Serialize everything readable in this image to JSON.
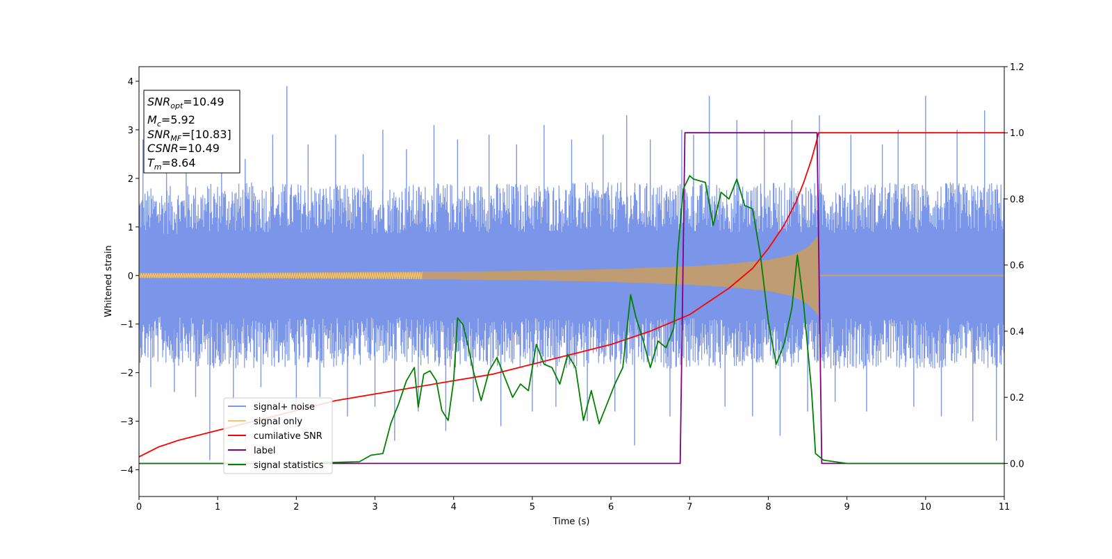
{
  "chart_data": {
    "type": "line",
    "title": "",
    "xlabel": "Time (s)",
    "ylabel": "Whitened strain",
    "xlim": [
      0,
      11
    ],
    "ylim": [
      -4.55,
      4.3
    ],
    "y2lim": [
      -0.1,
      1.2
    ],
    "x_ticks": [
      0,
      1,
      2,
      3,
      4,
      5,
      6,
      7,
      8,
      9,
      10,
      11
    ],
    "y_ticks": [
      -4,
      -3,
      -2,
      -1,
      0,
      1,
      2,
      3,
      4
    ],
    "y2_ticks": [
      0.0,
      0.2,
      0.4,
      0.6,
      0.8,
      1.0,
      1.2
    ],
    "grid": false,
    "legend_position": "bottom-left",
    "annotation": {
      "lines": [
        {
          "base": "SNR",
          "sub": "opt",
          "value": "=10.49"
        },
        {
          "base": "M",
          "sub": "c",
          "value": "=5.92"
        },
        {
          "base": "SNR",
          "sub": "MF",
          "value": "=[10.83]"
        },
        {
          "base": "CSNR",
          "sub": "",
          "value": "=10.49"
        },
        {
          "base": "T",
          "sub": "m",
          "value": "=8.64"
        }
      ]
    },
    "series": [
      {
        "name": "signal+ noise",
        "color": "#7b96e8",
        "axis": "left",
        "description_of_values": "whitened strain noise band",
        "x": [
          0,
          1,
          2,
          3,
          4,
          5,
          6,
          7,
          8,
          9,
          10,
          11
        ],
        "y_upper": [
          1.5,
          1.6,
          1.6,
          1.55,
          1.6,
          1.6,
          1.6,
          1.6,
          1.6,
          1.6,
          1.6,
          1.6
        ],
        "y_lower": [
          -1.5,
          -1.6,
          -1.6,
          -1.55,
          -1.6,
          -1.6,
          -1.6,
          -1.6,
          -1.6,
          -1.6,
          -1.6,
          -1.6
        ],
        "spikes": [
          [
            0.05,
            2.8
          ],
          [
            0.15,
            -2.3
          ],
          [
            0.35,
            2.6
          ],
          [
            0.45,
            -2.4
          ],
          [
            0.6,
            2.9
          ],
          [
            0.72,
            -2.5
          ],
          [
            0.9,
            -3.8
          ],
          [
            1.05,
            2.5
          ],
          [
            1.2,
            -2.6
          ],
          [
            1.35,
            2.4
          ],
          [
            1.55,
            -2.3
          ],
          [
            1.7,
            2.9
          ],
          [
            1.88,
            3.9
          ],
          [
            2.0,
            -2.7
          ],
          [
            2.15,
            2.7
          ],
          [
            2.3,
            -2.5
          ],
          [
            2.5,
            2.9
          ],
          [
            2.65,
            -2.9
          ],
          [
            2.85,
            2.5
          ],
          [
            3.0,
            -2.7
          ],
          [
            3.1,
            3.0
          ],
          [
            3.25,
            -3.4
          ],
          [
            3.4,
            2.6
          ],
          [
            3.55,
            -2.8
          ],
          [
            3.75,
            3.1
          ],
          [
            3.9,
            -3.2
          ],
          [
            4.05,
            2.8
          ],
          [
            4.25,
            -2.6
          ],
          [
            4.45,
            2.9
          ],
          [
            4.6,
            -3.1
          ],
          [
            4.8,
            2.7
          ],
          [
            5.0,
            -2.8
          ],
          [
            5.15,
            3.1
          ],
          [
            5.3,
            -2.7
          ],
          [
            5.5,
            2.8
          ],
          [
            5.7,
            -3.0
          ],
          [
            5.9,
            2.9
          ],
          [
            6.05,
            -2.8
          ],
          [
            6.2,
            3.3
          ],
          [
            6.3,
            -3.5
          ],
          [
            6.5,
            2.8
          ],
          [
            6.75,
            -2.9
          ],
          [
            6.9,
            3.0
          ],
          [
            7.05,
            2.9
          ],
          [
            7.25,
            3.7
          ],
          [
            7.45,
            -2.7
          ],
          [
            7.6,
            3.2
          ],
          [
            7.8,
            -2.9
          ],
          [
            7.95,
            3.0
          ],
          [
            8.15,
            -3.3
          ],
          [
            8.3,
            3.2
          ],
          [
            8.5,
            -2.8
          ],
          [
            8.65,
            3.3
          ],
          [
            8.85,
            -2.6
          ],
          [
            9.05,
            2.9
          ],
          [
            9.25,
            -2.8
          ],
          [
            9.45,
            2.7
          ],
          [
            9.65,
            3.0
          ],
          [
            9.85,
            -2.7
          ],
          [
            10.0,
            3.7
          ],
          [
            10.2,
            -2.9
          ],
          [
            10.4,
            3.0
          ],
          [
            10.6,
            -3.0
          ],
          [
            10.75,
            3.4
          ],
          [
            10.9,
            -3.4
          ]
        ]
      },
      {
        "name": "signal only",
        "color": "#f7c56a",
        "axis": "left",
        "description_of_values": "chirp amplitude envelope",
        "x": [
          0,
          1,
          2,
          3,
          4,
          5,
          6,
          7,
          7.5,
          8,
          8.3,
          8.5,
          8.6,
          8.64,
          11
        ],
        "y_envelope": [
          0.05,
          0.05,
          0.06,
          0.07,
          0.08,
          0.1,
          0.13,
          0.19,
          0.24,
          0.32,
          0.42,
          0.58,
          0.75,
          0.85,
          0.0
        ]
      },
      {
        "name": "cumilative SNR",
        "color": "#ff0000",
        "axis": "right",
        "x": [
          0,
          0.25,
          0.5,
          1,
          1.5,
          2,
          2.5,
          3,
          3.5,
          4,
          4.5,
          5,
          5.5,
          6,
          6.5,
          7,
          7.5,
          7.8,
          8.0,
          8.2,
          8.35,
          8.45,
          8.55,
          8.62,
          8.64,
          11
        ],
        "y": [
          0.02,
          0.05,
          0.07,
          0.1,
          0.13,
          0.16,
          0.19,
          0.21,
          0.23,
          0.25,
          0.27,
          0.3,
          0.33,
          0.36,
          0.4,
          0.45,
          0.53,
          0.59,
          0.65,
          0.72,
          0.79,
          0.85,
          0.92,
          0.98,
          1.0,
          1.0
        ]
      },
      {
        "name": "label",
        "color": "#800080",
        "axis": "right",
        "x": [
          0,
          6.88,
          6.94,
          8.62,
          8.68,
          11
        ],
        "y": [
          0,
          0,
          1,
          1,
          0,
          0
        ]
      },
      {
        "name": "signal statistics",
        "color": "#008000",
        "axis": "right",
        "x": [
          0,
          1,
          2,
          2.8,
          2.95,
          3.1,
          3.2,
          3.3,
          3.4,
          3.5,
          3.55,
          3.62,
          3.7,
          3.78,
          3.85,
          3.93,
          4.0,
          4.05,
          4.12,
          4.18,
          4.25,
          4.35,
          4.45,
          4.55,
          4.65,
          4.75,
          4.85,
          4.95,
          5.05,
          5.15,
          5.25,
          5.35,
          5.45,
          5.55,
          5.65,
          5.75,
          5.85,
          5.95,
          6.05,
          6.15,
          6.25,
          6.32,
          6.4,
          6.5,
          6.6,
          6.7,
          6.8,
          6.85,
          6.92,
          7.0,
          7.05,
          7.2,
          7.3,
          7.4,
          7.5,
          7.6,
          7.7,
          7.8,
          7.9,
          8.0,
          8.1,
          8.2,
          8.3,
          8.37,
          8.45,
          8.55,
          8.6,
          8.7,
          9.0,
          11
        ],
        "y": [
          0.0,
          0.0,
          0.0,
          0.005,
          0.025,
          0.03,
          0.12,
          0.18,
          0.25,
          0.29,
          0.17,
          0.27,
          0.28,
          0.25,
          0.16,
          0.13,
          0.25,
          0.44,
          0.42,
          0.36,
          0.28,
          0.19,
          0.28,
          0.32,
          0.26,
          0.2,
          0.24,
          0.22,
          0.36,
          0.3,
          0.29,
          0.24,
          0.33,
          0.29,
          0.13,
          0.22,
          0.12,
          0.18,
          0.24,
          0.29,
          0.51,
          0.44,
          0.38,
          0.29,
          0.37,
          0.35,
          0.41,
          0.64,
          0.83,
          0.87,
          0.86,
          0.85,
          0.72,
          0.82,
          0.8,
          0.86,
          0.78,
          0.77,
          0.63,
          0.43,
          0.3,
          0.36,
          0.47,
          0.63,
          0.48,
          0.22,
          0.03,
          0.01,
          0.0,
          0.0
        ]
      }
    ]
  }
}
